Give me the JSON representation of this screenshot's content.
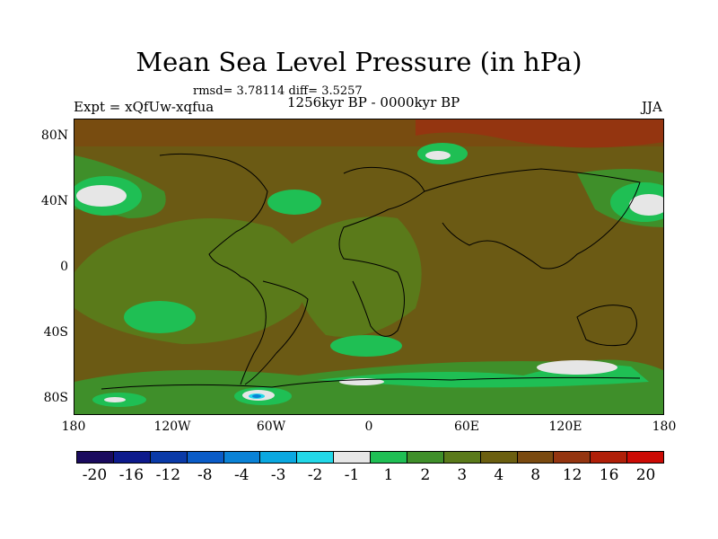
{
  "title": "Mean Sea Level Pressure (in hPa)",
  "stats": "rmsd= 3.78114 diff= 3.5257",
  "experiment": "Expt = xQfUw-xqfua",
  "period": "1256kyr BP - 0000kyr BP",
  "season": "JJA",
  "latitude_labels": [
    "80N",
    "40N",
    "0",
    "40S",
    "80S"
  ],
  "longitude_labels": [
    "180",
    "120W",
    "60W",
    "0",
    "60E",
    "120E",
    "180"
  ],
  "colorbar": {
    "colors": [
      "#1a0a5e",
      "#0d1a8c",
      "#0a3aa8",
      "#0a5cc8",
      "#0a82d6",
      "#0aa8e0",
      "#22d8e8",
      "#e6e6e6",
      "#1fbf54",
      "#3f8f2a",
      "#5a7a1a",
      "#6b5f10",
      "#7a4a10",
      "#943510",
      "#b01f08",
      "#cc0a04"
    ],
    "labels": [
      "-20",
      "-16",
      "-12",
      "-8",
      "-4",
      "-3",
      "-2",
      "-1",
      "1",
      "2",
      "3",
      "4",
      "8",
      "12",
      "16",
      "20"
    ]
  },
  "map_colors": {
    "base": "#6b5a14",
    "green_light": "#1fbf54",
    "green_mid": "#3f8f2a",
    "green_dark": "#5a7a1a",
    "brown": "#7a4a10",
    "brown_red": "#943510",
    "white": "#e6e6e6",
    "cyan": "#22d8e8",
    "blue": "#0a82d6"
  }
}
